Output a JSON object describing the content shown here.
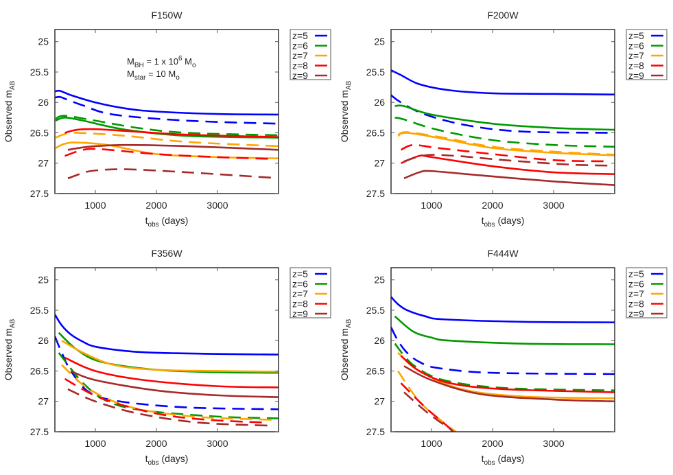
{
  "figure": {
    "panels": [
      "F150W",
      "F200W",
      "F356W",
      "F444W"
    ],
    "annotation": {
      "line1": {
        "main": "M",
        "sub": "BH",
        "text": " = 1 x 10",
        "sup": "6",
        "unit": " M",
        "unit_sub": "o"
      },
      "line2": {
        "main": "M",
        "sub": "star",
        "text": " = 10 M",
        "unit_sub": "o"
      }
    }
  },
  "chart_data": [
    {
      "type": "line",
      "title": "F150W",
      "xlabel": "t_obs (days)",
      "ylabel": "Observed m_AB",
      "xlim": [
        337,
        4000
      ],
      "ylim": [
        27.5,
        24.8
      ],
      "y_inverted": true,
      "xticks": [
        1000,
        2000,
        3000
      ],
      "yticks": [
        25,
        25.5,
        26,
        26.5,
        27,
        27.5
      ],
      "grid": false,
      "legend": {
        "position": "outside-right-top",
        "entries": [
          "z=5",
          "z=6",
          "z=7",
          "z=8",
          "z=9"
        ]
      },
      "series": [
        {
          "name": "z=5",
          "style": "solid",
          "color": "#0000ff",
          "x": [
            340,
            420,
            600,
            1000,
            1500,
            2000,
            3000,
            4000
          ],
          "y": [
            25.82,
            25.81,
            25.88,
            26.0,
            26.1,
            26.15,
            26.19,
            26.2
          ]
        },
        {
          "name": "z=5 (dashed)",
          "style": "dashed",
          "color": "#0000ff",
          "x": [
            340,
            420,
            530,
            800,
            1300,
            2500,
            4000
          ],
          "y": [
            25.92,
            25.91,
            25.95,
            26.05,
            26.2,
            26.3,
            26.35
          ]
        },
        {
          "name": "z=6",
          "style": "solid",
          "color": "#009900",
          "x": [
            350,
            500,
            800,
            1500,
            2500,
            4000
          ],
          "y": [
            26.3,
            26.25,
            26.3,
            26.45,
            26.55,
            26.58
          ]
        },
        {
          "name": "z=6 (dashed)",
          "style": "dashed",
          "color": "#009900",
          "x": [
            350,
            500,
            1000,
            1700,
            2500,
            4000
          ],
          "y": [
            26.27,
            26.22,
            26.3,
            26.42,
            26.5,
            26.54
          ]
        },
        {
          "name": "z=7",
          "style": "solid",
          "color": "#ffa500",
          "x": [
            350,
            500,
            700,
            1200,
            2000,
            3000,
            4000
          ],
          "y": [
            26.75,
            26.68,
            26.66,
            26.7,
            26.85,
            26.9,
            26.92
          ]
        },
        {
          "name": "z=7 (dashed)",
          "style": "dashed",
          "color": "#ffa500",
          "x": [
            350,
            500,
            700,
            1500,
            2500,
            4000
          ],
          "y": [
            26.58,
            26.52,
            26.5,
            26.55,
            26.65,
            26.72
          ]
        },
        {
          "name": "z=8",
          "style": "solid",
          "color": "#ff0000",
          "x": [
            500,
            700,
            1000,
            1500,
            2500,
            4000
          ],
          "y": [
            26.5,
            26.45,
            26.44,
            26.47,
            26.53,
            26.57
          ]
        },
        {
          "name": "z=8 (dashed)",
          "style": "dashed",
          "color": "#ff0000",
          "x": [
            500,
            800,
            1100,
            2000,
            3000,
            3900
          ],
          "y": [
            26.88,
            26.78,
            26.77,
            26.85,
            26.9,
            26.93
          ]
        },
        {
          "name": "z=9",
          "style": "solid",
          "color": "#a52a2a",
          "x": [
            550,
            800,
            1000,
            1500,
            2500,
            4000
          ],
          "y": [
            26.78,
            26.74,
            26.72,
            26.7,
            26.72,
            26.78
          ]
        },
        {
          "name": "z=9 (dashed)",
          "style": "dashed",
          "color": "#a52a2a",
          "x": [
            550,
            800,
            1000,
            1500,
            2500,
            3900
          ],
          "y": [
            27.25,
            27.16,
            27.12,
            27.1,
            27.15,
            27.24
          ]
        }
      ]
    },
    {
      "type": "line",
      "title": "F200W",
      "xlabel": "t_obs (days)",
      "ylabel": "Observed m_AB",
      "xlim": [
        337,
        4000
      ],
      "ylim": [
        27.5,
        24.8
      ],
      "y_inverted": true,
      "xticks": [
        1000,
        2000,
        3000
      ],
      "yticks": [
        25,
        25.5,
        26,
        26.5,
        27,
        27.5
      ],
      "grid": false,
      "legend": {
        "position": "outside-right-top",
        "entries": [
          "z=5",
          "z=6",
          "z=7",
          "z=8",
          "z=9"
        ]
      },
      "series": [
        {
          "name": "z=5",
          "style": "solid",
          "color": "#0000ff",
          "x": [
            337,
            500,
            800,
            1300,
            2000,
            3000,
            4000
          ],
          "y": [
            25.47,
            25.55,
            25.7,
            25.8,
            25.85,
            25.86,
            25.87
          ]
        },
        {
          "name": "z=5 (dashed)",
          "style": "dashed",
          "color": "#0000ff",
          "x": [
            337,
            500,
            900,
            1600,
            2500,
            4000
          ],
          "y": [
            25.88,
            26.0,
            26.2,
            26.38,
            26.48,
            26.5
          ]
        },
        {
          "name": "z=6",
          "style": "solid",
          "color": "#009900",
          "x": [
            400,
            550,
            1000,
            2000,
            3000,
            4000
          ],
          "y": [
            26.06,
            26.06,
            26.2,
            26.35,
            26.42,
            26.45
          ]
        },
        {
          "name": "z=6 (dashed)",
          "style": "dashed",
          "color": "#009900",
          "x": [
            400,
            550,
            1100,
            2000,
            3000,
            4000
          ],
          "y": [
            26.25,
            26.28,
            26.45,
            26.62,
            26.7,
            26.73
          ]
        },
        {
          "name": "z=7",
          "style": "solid",
          "color": "#ffa500",
          "x": [
            450,
            600,
            1200,
            2000,
            3000,
            4000
          ],
          "y": [
            26.55,
            26.5,
            26.6,
            26.75,
            26.83,
            26.87
          ]
        },
        {
          "name": "z=7 (dashed)",
          "style": "dashed",
          "color": "#ffa500",
          "x": [
            450,
            600,
            1200,
            2000,
            3000,
            4000
          ],
          "y": [
            26.54,
            26.49,
            26.58,
            26.73,
            26.81,
            26.86
          ]
        },
        {
          "name": "z=8",
          "style": "solid",
          "color": "#ff0000",
          "x": [
            500,
            800,
            1000,
            2000,
            3000,
            4000
          ],
          "y": [
            27.0,
            26.88,
            26.9,
            27.05,
            27.15,
            27.18
          ]
        },
        {
          "name": "z=8 (dashed)",
          "style": "dashed",
          "color": "#ff0000",
          "x": [
            500,
            700,
            1100,
            2000,
            3000,
            3900
          ],
          "y": [
            26.78,
            26.7,
            26.75,
            26.85,
            26.95,
            26.97
          ]
        },
        {
          "name": "z=9",
          "style": "solid",
          "color": "#a52a2a",
          "x": [
            550,
            800,
            1000,
            1800,
            3000,
            4000
          ],
          "y": [
            27.25,
            27.15,
            27.13,
            27.2,
            27.3,
            27.36
          ]
        },
        {
          "name": "z=9 (dashed)",
          "style": "dashed",
          "color": "#a52a2a",
          "x": [
            550,
            900,
            1400,
            2200,
            3200,
            3900
          ],
          "y": [
            26.97,
            26.87,
            26.88,
            26.95,
            27.02,
            27.04
          ]
        }
      ]
    },
    {
      "type": "line",
      "title": "F356W",
      "xlabel": "t_obs (days)",
      "ylabel": "Observed m_AB",
      "xlim": [
        337,
        4000
      ],
      "ylim": [
        27.5,
        24.8
      ],
      "y_inverted": true,
      "xticks": [
        1000,
        2000,
        3000
      ],
      "yticks": [
        25,
        25.5,
        26,
        26.5,
        27,
        27.5
      ],
      "grid": false,
      "legend": {
        "position": "outside-right-top",
        "entries": [
          "z=5",
          "z=6",
          "z=7",
          "z=8",
          "z=9"
        ]
      },
      "series": [
        {
          "name": "z=5",
          "style": "solid",
          "color": "#0000ff",
          "x": [
            337,
            450,
            600,
            800,
            1000,
            1500,
            2000,
            3000,
            4000
          ],
          "y": [
            25.57,
            25.75,
            25.9,
            26.02,
            26.1,
            26.17,
            26.2,
            26.22,
            26.23
          ]
        },
        {
          "name": "z=5 (dashed)",
          "style": "dashed",
          "color": "#0000ff",
          "x": [
            337,
            450,
            600,
            900,
            1400,
            2500,
            4000
          ],
          "y": [
            25.93,
            26.2,
            26.5,
            26.85,
            27.0,
            27.1,
            27.13
          ]
        },
        {
          "name": "z=6",
          "style": "solid",
          "color": "#009900",
          "x": [
            400,
            700,
            1100,
            2000,
            3000,
            4000
          ],
          "y": [
            25.87,
            26.15,
            26.35,
            26.48,
            26.52,
            26.53
          ]
        },
        {
          "name": "z=6 (dashed)",
          "style": "dashed",
          "color": "#009900",
          "x": [
            400,
            800,
            1200,
            1800,
            3000,
            4000
          ],
          "y": [
            26.2,
            26.7,
            27.0,
            27.15,
            27.25,
            27.28
          ]
        },
        {
          "name": "z=7",
          "style": "solid",
          "color": "#ffa500",
          "x": [
            450,
            800,
            1300,
            2000,
            3000,
            4000
          ],
          "y": [
            26.0,
            26.2,
            26.4,
            26.48,
            26.5,
            26.51
          ]
        },
        {
          "name": "z=7 (dashed)",
          "style": "dashed",
          "color": "#ffa500",
          "x": [
            450,
            900,
            1600,
            2600,
            3800,
            4000
          ],
          "y": [
            26.4,
            26.8,
            27.1,
            27.25,
            27.3,
            27.31
          ]
        },
        {
          "name": "z=8",
          "style": "solid",
          "color": "#ff0000",
          "x": [
            500,
            1000,
            1800,
            3000,
            4000
          ],
          "y": [
            26.28,
            26.5,
            26.65,
            26.75,
            26.77
          ]
        },
        {
          "name": "z=8 (dashed)",
          "style": "dashed",
          "color": "#ff0000",
          "x": [
            500,
            1100,
            2000,
            2800,
            3800
          ],
          "y": [
            26.63,
            26.95,
            27.2,
            27.3,
            27.35
          ]
        },
        {
          "name": "z=9",
          "style": "solid",
          "color": "#a52a2a",
          "x": [
            600,
            1000,
            2000,
            3000,
            4000
          ],
          "y": [
            26.5,
            26.65,
            26.82,
            26.9,
            26.93
          ]
        },
        {
          "name": "z=9 (dashed)",
          "style": "dashed",
          "color": "#a52a2a",
          "x": [
            550,
            1000,
            1700,
            2700,
            3900
          ],
          "y": [
            26.8,
            27.0,
            27.2,
            27.35,
            27.4
          ]
        }
      ]
    },
    {
      "type": "line",
      "title": "F444W",
      "xlabel": "t_obs (days)",
      "ylabel": "Observed m_AB",
      "xlim": [
        337,
        4000
      ],
      "ylim": [
        27.5,
        24.8
      ],
      "y_inverted": true,
      "xticks": [
        1000,
        2000,
        3000
      ],
      "yticks": [
        25,
        25.5,
        26,
        26.5,
        27,
        27.5
      ],
      "grid": false,
      "legend": {
        "position": "outside-right-top",
        "entries": [
          "z=5",
          "z=6",
          "z=7",
          "z=8",
          "z=9"
        ]
      },
      "series": [
        {
          "name": "z=5",
          "style": "solid",
          "color": "#0000ff",
          "x": [
            337,
            450,
            600,
            900,
            1200,
            2500,
            4000
          ],
          "y": [
            25.28,
            25.4,
            25.5,
            25.6,
            25.65,
            25.69,
            25.7
          ]
        },
        {
          "name": "z=5 (dashed)",
          "style": "dashed",
          "color": "#0000ff",
          "x": [
            337,
            450,
            600,
            800,
            1100,
            2000,
            4000
          ],
          "y": [
            25.78,
            26.0,
            26.2,
            26.35,
            26.45,
            26.53,
            26.55
          ]
        },
        {
          "name": "z=6",
          "style": "solid",
          "color": "#009900",
          "x": [
            400,
            700,
            1000,
            1300,
            2500,
            4000
          ],
          "y": [
            25.6,
            25.85,
            25.95,
            26.0,
            26.05,
            26.06
          ]
        },
        {
          "name": "z=6 (dashed)",
          "style": "dashed",
          "color": "#009900",
          "x": [
            400,
            700,
            1200,
            2200,
            4000
          ],
          "y": [
            26.05,
            26.4,
            26.65,
            26.78,
            26.82
          ]
        },
        {
          "name": "z=7",
          "style": "solid",
          "color": "#ffa500",
          "x": [
            450,
            800,
            1500,
            2500,
            4000
          ],
          "y": [
            26.2,
            26.5,
            26.8,
            26.92,
            26.95
          ]
        },
        {
          "name": "z=7 (dashed)",
          "style": "dashed",
          "color": "#ffa500",
          "x": [
            450,
            800,
            1200,
            1400
          ],
          "y": [
            26.5,
            27.0,
            27.35,
            27.5
          ]
        },
        {
          "name": "z=8",
          "style": "solid",
          "color": "#ff0000",
          "x": [
            500,
            800,
            1300,
            2200,
            4000
          ],
          "y": [
            26.25,
            26.5,
            26.7,
            26.8,
            26.85
          ]
        },
        {
          "name": "z=8 (dashed)",
          "style": "dashed",
          "color": "#ff0000",
          "x": [
            500,
            900,
            1250,
            1350
          ],
          "y": [
            26.7,
            27.1,
            27.4,
            27.5
          ]
        },
        {
          "name": "z=9",
          "style": "solid",
          "color": "#a52a2a",
          "x": [
            550,
            1000,
            1800,
            3000,
            4000
          ],
          "y": [
            26.42,
            26.65,
            26.88,
            26.97,
            27.0
          ]
        },
        {
          "name": "z=9 (dashed)",
          "style": "dashed",
          "color": "#a52a2a",
          "x": [
            550,
            950,
            1300,
            1350
          ],
          "y": [
            26.85,
            27.2,
            27.45,
            27.5
          ]
        }
      ]
    }
  ]
}
